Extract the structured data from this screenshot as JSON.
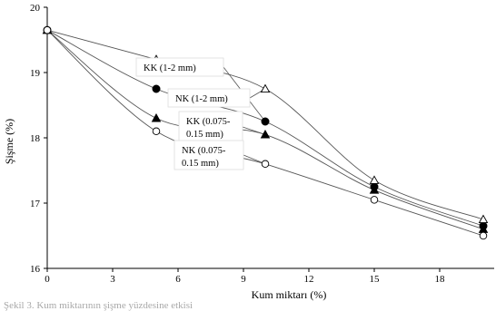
{
  "chart_data": {
    "type": "line",
    "xlabel": "Kum miktarı (%)",
    "ylabel": "Şişme (%)",
    "xlim": [
      0,
      20.5
    ],
    "ylim": [
      16,
      20
    ],
    "xticks": [
      0,
      3,
      6,
      9,
      12,
      15,
      18
    ],
    "yticks": [
      16,
      17,
      18,
      19,
      20
    ],
    "grid": false,
    "x": [
      0,
      5,
      10,
      15,
      20
    ],
    "series": [
      {
        "name": "KK (1-2 mm)",
        "values": [
          19.65,
          18.75,
          18.25,
          17.25,
          16.65
        ],
        "marker": "circle-filled"
      },
      {
        "name": "NK (1-2 mm)",
        "values": [
          19.65,
          19.2,
          18.75,
          17.35,
          16.75
        ],
        "marker": "triangle-open"
      },
      {
        "name": "KK (0.075-0.15 mm)",
        "values": [
          19.65,
          18.3,
          18.05,
          17.2,
          16.6
        ],
        "marker": "triangle-filled"
      },
      {
        "name": "NK (0.075-0.15 mm)",
        "values": [
          19.65,
          18.1,
          17.6,
          17.05,
          16.5
        ],
        "marker": "circle-open"
      }
    ],
    "annotations": [
      {
        "lines": [
          "KK (1-2 mm)"
        ],
        "series": 0
      },
      {
        "lines": [
          "NK (1-2 mm)"
        ],
        "series": 1
      },
      {
        "lines": [
          "KK (0.075-",
          "0.15 mm)"
        ],
        "series": 2
      },
      {
        "lines": [
          "NK (0.075-",
          "0.15 mm)"
        ],
        "series": 3
      }
    ],
    "caption": "Şekil 3. Kum miktarının şişme yüzdesine etkisi"
  }
}
